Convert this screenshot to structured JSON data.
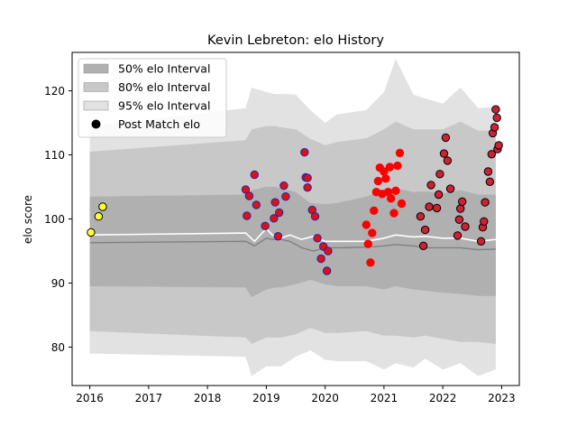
{
  "chart_data": {
    "type": "scatter",
    "title": "Kevin Lebreton: elo History",
    "xlabel": "",
    "ylabel": "elo score",
    "xlim": [
      2015.7,
      2023.3
    ],
    "ylim": [
      74,
      126
    ],
    "x_ticks": [
      2016,
      2017,
      2018,
      2019,
      2020,
      2021,
      2022,
      2023
    ],
    "y_ticks": [
      80,
      90,
      100,
      110,
      120
    ],
    "grid": false,
    "legend_position": "top-left",
    "legend": [
      {
        "label": "50% elo Interval",
        "kind": "band",
        "color": "#b0b0b0"
      },
      {
        "label": "80% elo Interval",
        "kind": "band",
        "color": "#c8c8c8"
      },
      {
        "label": "95% elo Interval",
        "kind": "band",
        "color": "#e2e2e2"
      },
      {
        "label": "Post Match elo",
        "kind": "marker",
        "color": "#000000"
      }
    ],
    "bands": {
      "x": [
        2016.0,
        2018.65,
        2018.75,
        2019.0,
        2019.15,
        2019.25,
        2019.5,
        2019.75,
        2020.0,
        2020.2,
        2020.7,
        2021.0,
        2021.2,
        2021.5,
        2021.7,
        2022.0,
        2022.3,
        2022.6,
        2022.9
      ],
      "p95": {
        "upper": [
          114.5,
          117.3,
          120.5,
          119.8,
          119.5,
          119.5,
          119.4,
          117.0,
          115.0,
          116.3,
          117.0,
          119.8,
          125.0,
          119.4,
          118.8,
          118.0,
          120.5,
          117.3,
          117.5
        ],
        "lower": [
          79.0,
          78.5,
          75.5,
          77.0,
          77.0,
          77.0,
          78.5,
          79.5,
          78.0,
          77.8,
          77.8,
          76.5,
          77.5,
          76.8,
          78.2,
          76.5,
          77.5,
          75.5,
          76.5
        ]
      },
      "p80": {
        "upper": [
          110.5,
          112.3,
          114.0,
          114.5,
          114.5,
          114.3,
          114.0,
          112.5,
          111.5,
          112.0,
          112.6,
          114.0,
          115.2,
          114.0,
          114.0,
          114.0,
          115.2,
          113.8,
          113.8
        ],
        "lower": [
          82.5,
          81.5,
          80.5,
          81.5,
          81.5,
          81.5,
          82.0,
          83.0,
          82.2,
          82.2,
          82.5,
          81.8,
          81.8,
          81.5,
          81.8,
          81.3,
          80.8,
          80.8,
          80.5
        ]
      },
      "p50": {
        "upper": [
          103.5,
          103.8,
          104.5,
          105.0,
          105.0,
          104.8,
          104.2,
          102.5,
          102.3,
          102.5,
          103.5,
          104.5,
          104.8,
          104.2,
          104.3,
          104.0,
          104.5,
          103.8,
          103.8
        ],
        "lower": [
          89.5,
          89.3,
          87.8,
          89.0,
          89.3,
          89.3,
          89.8,
          90.5,
          89.8,
          89.5,
          89.5,
          89.0,
          89.5,
          89.0,
          88.8,
          88.5,
          88.3,
          88.0,
          88.0
        ]
      }
    },
    "series": [
      {
        "kind": "mean-line",
        "color": "#ffffff",
        "x": [
          2016.0,
          2018.65,
          2018.8,
          2019.0,
          2019.1,
          2019.25,
          2019.4,
          2019.6,
          2019.8,
          2020.0,
          2020.3,
          2020.7,
          2021.0,
          2021.2,
          2021.5,
          2021.7,
          2022.0,
          2022.3,
          2022.6,
          2022.9
        ],
        "y": [
          97.5,
          97.8,
          96.5,
          98.5,
          97.5,
          97.0,
          97.5,
          96.8,
          97.3,
          96.5,
          96.5,
          96.5,
          97.0,
          97.5,
          97.2,
          97.3,
          97.0,
          97.0,
          96.5,
          96.8
        ]
      },
      {
        "kind": "median-line",
        "color": "#808080",
        "x": [
          2016.0,
          2018.65,
          2018.8,
          2019.0,
          2019.1,
          2019.25,
          2019.4,
          2019.6,
          2019.8,
          2020.0,
          2020.3,
          2020.7,
          2021.0,
          2021.2,
          2021.5,
          2021.7,
          2022.0,
          2022.3,
          2022.6,
          2022.9
        ],
        "y": [
          96.3,
          96.5,
          95.8,
          97.0,
          96.8,
          96.8,
          96.5,
          95.5,
          95.0,
          95.5,
          95.5,
          95.6,
          95.8,
          96.0,
          95.8,
          95.5,
          95.5,
          95.5,
          95.2,
          95.3
        ]
      },
      {
        "kind": "points",
        "fill": "#ffff33",
        "stroke": "#000000",
        "x": [
          2016.02,
          2016.15,
          2016.22
        ],
        "y": [
          97.9,
          100.4,
          101.9
        ]
      },
      {
        "kind": "points",
        "fill": "#dd1111",
        "stroke": "#2222aa",
        "x": [
          2018.65,
          2018.67,
          2018.71,
          2018.8,
          2018.83,
          2018.98,
          2019.13,
          2019.15,
          2019.2,
          2019.22,
          2019.3,
          2019.33,
          2019.65,
          2019.67,
          2019.7,
          2019.7,
          2019.78,
          2019.83,
          2019.87,
          2019.93,
          2019.97,
          2020.03,
          2020.05
        ],
        "y": [
          104.6,
          100.5,
          103.6,
          106.9,
          102.2,
          98.9,
          100.1,
          102.6,
          97.3,
          101.0,
          105.2,
          103.5,
          110.4,
          106.5,
          106.4,
          104.9,
          101.4,
          100.4,
          97.0,
          93.8,
          95.7,
          91.9,
          95.0
        ]
      },
      {
        "kind": "points",
        "fill": "#ff0000",
        "stroke": "#ff0000",
        "x": [
          2020.7,
          2020.73,
          2020.77,
          2020.8,
          2020.83,
          2020.87,
          2020.9,
          2020.93,
          2020.97,
          2021.0,
          2021.03,
          2021.07,
          2021.1,
          2021.12,
          2021.17,
          2021.2,
          2021.23,
          2021.27,
          2021.3
        ],
        "y": [
          99.1,
          96.1,
          93.2,
          97.8,
          101.3,
          104.2,
          105.9,
          108.0,
          103.9,
          107.4,
          106.3,
          104.2,
          108.1,
          103.2,
          100.9,
          104.4,
          108.3,
          110.3,
          102.4
        ]
      },
      {
        "kind": "points",
        "fill": "#cc2233",
        "stroke": "#000000",
        "x": [
          2021.62,
          2021.67,
          2021.7,
          2021.77,
          2021.8,
          2021.9,
          2021.93,
          2021.95,
          2022.02,
          2022.05,
          2022.08,
          2022.13,
          2022.25,
          2022.28,
          2022.3,
          2022.33,
          2022.38,
          2022.65,
          2022.68,
          2022.7,
          2022.72,
          2022.77,
          2022.8,
          2022.83,
          2022.85,
          2022.88,
          2022.9,
          2022.92,
          2022.93,
          2022.95
        ],
        "y": [
          100.4,
          95.8,
          98.3,
          101.9,
          105.3,
          101.7,
          103.8,
          107.0,
          110.2,
          112.7,
          109.1,
          104.7,
          97.4,
          99.9,
          101.6,
          102.7,
          98.8,
          96.5,
          98.7,
          99.6,
          102.6,
          107.4,
          105.8,
          110.1,
          113.4,
          114.3,
          117.1,
          115.8,
          110.9,
          111.5
        ]
      }
    ]
  }
}
